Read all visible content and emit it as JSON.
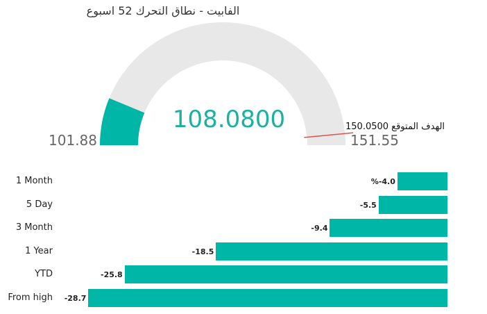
{
  "gauge": {
    "title": "الفابيت - نطاق التحرك 52 اسبوع",
    "value_text": "108.0800",
    "min_text": "101.88",
    "max_text": "151.55",
    "target_label": "الهدف المتوقع",
    "target_value_text": "150.0500",
    "min": 101.88,
    "max": 151.55,
    "value": 108.08,
    "target": 150.05,
    "fill_color": "#00b6a6",
    "track_color": "#e8e8e8",
    "target_color": "#e05050"
  },
  "chart_data": [
    {
      "type": "gauge",
      "title": "الفابيت - نطاق التحرك 52 اسبوع",
      "min": 101.88,
      "max": 151.55,
      "value": 108.08,
      "target": 150.05
    },
    {
      "type": "bar",
      "orientation": "horizontal",
      "categories": [
        "1 Month",
        "5 Day",
        "3 Month",
        "1 Year",
        "YTD",
        "From high"
      ],
      "values": [
        -4.0,
        -5.5,
        -9.4,
        -18.5,
        -25.8,
        -28.7
      ],
      "value_labels": [
        "%-4.0",
        "-5.5",
        "-9.4",
        "-18.5",
        "-25.8",
        "-28.7"
      ],
      "color": "#00b6a6",
      "xlim": [
        -29,
        0
      ]
    }
  ]
}
